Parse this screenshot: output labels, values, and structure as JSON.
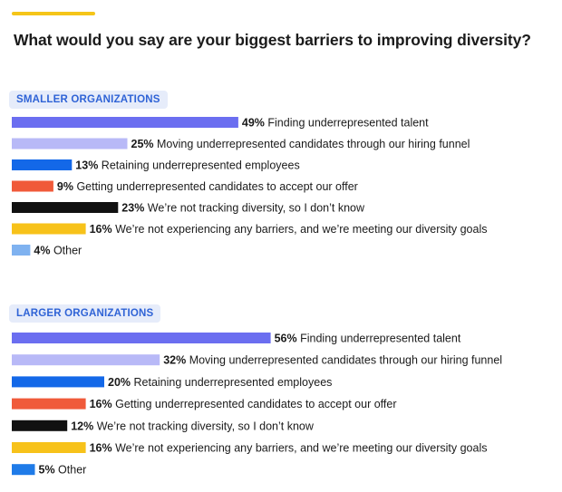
{
  "title": "What would you say are your biggest barriers to improving diversity?",
  "colors": {
    "accent": "#f5c518",
    "finding": "#6b6ef0",
    "moving": "#b8b9f7",
    "retaining": "#1368e8",
    "offer": "#f05a3a",
    "not_tracking": "#111111",
    "no_barriers": "#f7c21a",
    "other_smaller": "#7fb2f0",
    "other_larger": "#1f7be8",
    "group_label_text": "#2f63d6",
    "group_label_bg": "#e6ecfa"
  },
  "chart_data": [
    {
      "type": "bar",
      "orientation": "horizontal",
      "title": "SMALLER ORGANIZATIONS",
      "categories": [
        "Finding underrepresented talent",
        "Moving underrepresented candidates through our hiring funnel",
        "Retaining underrepresented employees",
        "Getting underrepresented candidates to accept our offer",
        "We’re not tracking diversity, so I don’t know",
        "We’re not experiencing any barriers, and we’re meeting our diversity goals",
        "Other"
      ],
      "values": [
        49,
        25,
        13,
        9,
        23,
        16,
        4
      ],
      "value_labels": [
        "49%",
        "25%",
        "13%",
        "9%",
        "23%",
        "16%",
        "4%"
      ],
      "colors": [
        "#6b6ef0",
        "#b8b9f7",
        "#1368e8",
        "#f05a3a",
        "#111111",
        "#f7c21a",
        "#7fb2f0"
      ],
      "unit": "%"
    },
    {
      "type": "bar",
      "orientation": "horizontal",
      "title": "LARGER ORGANIZATIONS",
      "categories": [
        "Finding underrepresented talent",
        "Moving underrepresented candidates through our hiring funnel",
        "Retaining underrepresented employees",
        "Getting underrepresented candidates to accept our offer",
        "We’re not tracking diversity, so I don’t know",
        "We’re not experiencing any barriers, and we’re meeting our diversity goals",
        "Other"
      ],
      "values": [
        56,
        32,
        20,
        16,
        12,
        16,
        5
      ],
      "value_labels": [
        "56%",
        "32%",
        "20%",
        "16%",
        "12%",
        "16%",
        "5%"
      ],
      "colors": [
        "#6b6ef0",
        "#b8b9f7",
        "#1368e8",
        "#f05a3a",
        "#111111",
        "#f7c21a",
        "#1f7be8"
      ],
      "unit": "%"
    }
  ]
}
